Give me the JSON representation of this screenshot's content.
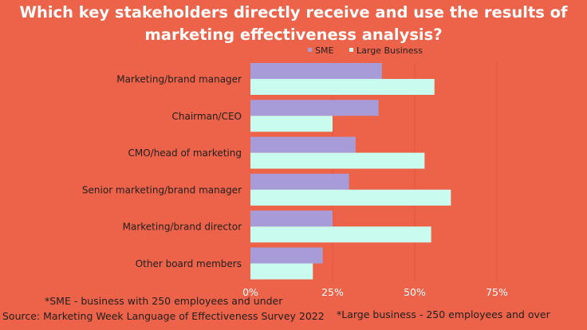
{
  "title": "Which key stakeholders directly receive and use the results of marketing effectiveness analysis?",
  "chart_data": {
    "type": "bar",
    "orientation": "horizontal",
    "categories": [
      "Marketing/brand manager",
      "Chairman/CEO",
      "CMO/head of marketing",
      "Senior marketing/brand manager",
      "Marketing/brand director",
      "Other board members"
    ],
    "series": [
      {
        "name": "SME",
        "color": "#A79BD8",
        "values": [
          40,
          39,
          32,
          30,
          25,
          22
        ]
      },
      {
        "name": "Large Business",
        "color": "#C9FBEE",
        "values": [
          56,
          25,
          53,
          61,
          55,
          19
        ]
      }
    ],
    "xticks": [
      "0%",
      "25%",
      "50%",
      "75%"
    ],
    "xlim": [
      0,
      75
    ],
    "grid": true,
    "legend_position": "top-right"
  },
  "notes": {
    "sme_note": "*SME - business with 250 employees and under",
    "source": "Source: Marketing Week Language of Effectiveness Survey 2022",
    "large_note": "*Large business - 250 employees and over"
  }
}
